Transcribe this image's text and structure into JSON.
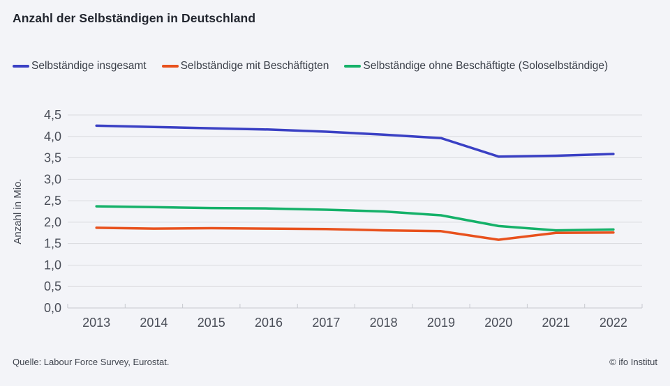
{
  "title": "Anzahl der Selbständigen in Deutschland",
  "legend": {
    "items": [
      {
        "label": "Selbständige insgesamt",
        "color": "#3a40c4"
      },
      {
        "label": "Selbständige mit Beschäftigten",
        "color": "#e8511d"
      },
      {
        "label": "Selbständige ohne Beschäftigte (Soloselbständige)",
        "color": "#15b169"
      }
    ]
  },
  "chart_data": {
    "type": "line",
    "x": [
      2013,
      2014,
      2015,
      2016,
      2017,
      2018,
      2019,
      2020,
      2021,
      2022
    ],
    "series": [
      {
        "name": "Selbständige insgesamt",
        "color": "#3a40c4",
        "values": [
          4.25,
          4.22,
          4.19,
          4.16,
          4.11,
          4.04,
          3.96,
          3.53,
          3.55,
          3.59
        ]
      },
      {
        "name": "Selbständige mit Beschäftigten",
        "color": "#e8511d",
        "values": [
          1.87,
          1.85,
          1.86,
          1.85,
          1.84,
          1.81,
          1.79,
          1.59,
          1.75,
          1.76
        ]
      },
      {
        "name": "Selbständige ohne Beschäftigte (Soloselbständige)",
        "color": "#15b169",
        "values": [
          2.37,
          2.35,
          2.33,
          2.32,
          2.29,
          2.25,
          2.16,
          1.91,
          1.81,
          1.83
        ]
      }
    ],
    "title": "Anzahl der Selbständigen in Deutschland",
    "xlabel": "",
    "ylabel": "Anzahl in Mio.",
    "ylim": [
      0,
      4.5
    ],
    "yticks": {
      "values": [
        0,
        0.5,
        1.0,
        1.5,
        2.0,
        2.5,
        3.0,
        3.5,
        4.0,
        4.5
      ],
      "labels": [
        "0,0",
        "0,5",
        "1,0",
        "1,5",
        "2,0",
        "2,5",
        "3,0",
        "3,5",
        "4,0",
        "4,5"
      ]
    },
    "grid": true,
    "legend_position": "top"
  },
  "footer": {
    "source": "Quelle: Labour Force Survey, Eurostat.",
    "copyright": "© ifo Institut"
  },
  "colors": {
    "background": "#f3f4f8",
    "gridline": "#d9dade",
    "axis_line": "#c7c9cf",
    "axis_text": "#4a4e58",
    "title_text": "#22262f"
  }
}
